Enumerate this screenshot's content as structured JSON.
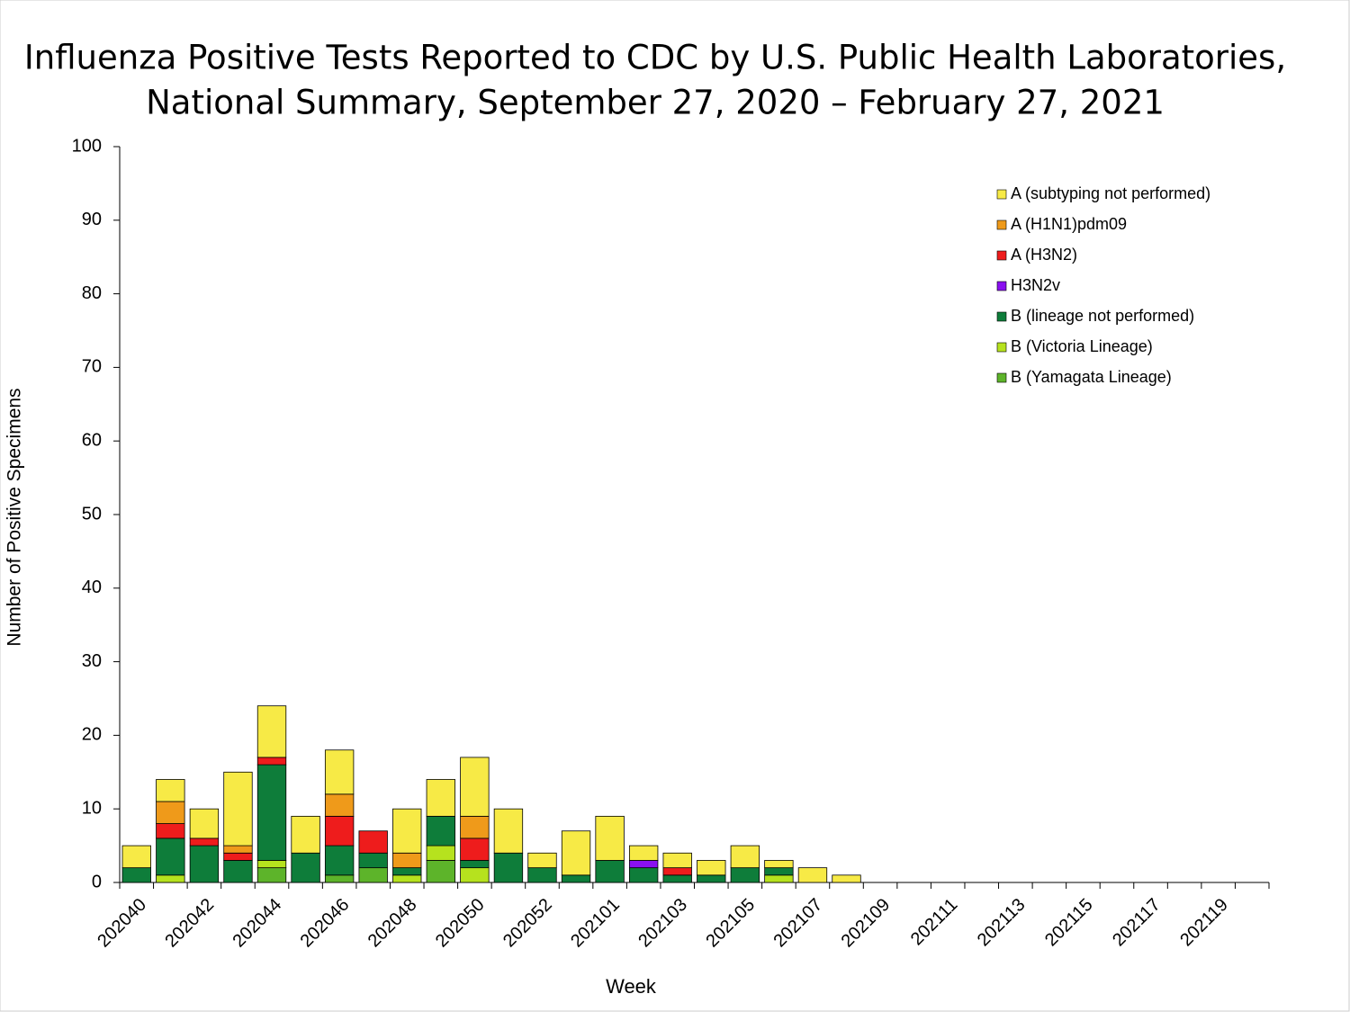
{
  "chart_data": {
    "type": "stacked-bar",
    "title": [
      "Influenza Positive Tests Reported to CDC by U.S. Public Health Laboratories,",
      "National Summary, September 27, 2020 – February 27, 2021"
    ],
    "x_label": "Week",
    "y_label": "Number of Positive Specimens",
    "categories": [
      "202040",
      null,
      "202042",
      null,
      "202044",
      null,
      "202046",
      null,
      "202048",
      null,
      "202050",
      null,
      "202052",
      null,
      "202101",
      null,
      "202103",
      null,
      "202105",
      null,
      "202107",
      null,
      "202109",
      null,
      "202111",
      null,
      "202113",
      null,
      "202115",
      null,
      "202117",
      null,
      "202119",
      null
    ],
    "series": [
      {
        "name": "A (subtyping not performed)",
        "color": "#f7ea46",
        "values": [
          3,
          3,
          4,
          10,
          7,
          5,
          6,
          0,
          6,
          5,
          8,
          6,
          2,
          6,
          6,
          2,
          2,
          2,
          3,
          1,
          2,
          1,
          0,
          0,
          0,
          0,
          0,
          0,
          0,
          0,
          0,
          0,
          0,
          0
        ]
      },
      {
        "name": "A (H1N1)pdm09",
        "color": "#ef9a1a",
        "values": [
          0,
          3,
          0,
          1,
          0,
          0,
          3,
          0,
          2,
          0,
          3,
          0,
          0,
          0,
          0,
          0,
          0,
          0,
          0,
          0,
          0,
          0,
          0,
          0,
          0,
          0,
          0,
          0,
          0,
          0,
          0,
          0,
          0,
          0
        ]
      },
      {
        "name": "A (H3N2)",
        "color": "#ee1c1c",
        "values": [
          0,
          2,
          1,
          1,
          1,
          0,
          4,
          3,
          0,
          0,
          3,
          0,
          0,
          0,
          0,
          0,
          1,
          0,
          0,
          0,
          0,
          0,
          0,
          0,
          0,
          0,
          0,
          0,
          0,
          0,
          0,
          0,
          0,
          0
        ]
      },
      {
        "name": "H3N2v",
        "color": "#8a10f0",
        "values": [
          0,
          0,
          0,
          0,
          0,
          0,
          0,
          0,
          0,
          0,
          0,
          0,
          0,
          0,
          0,
          1,
          0,
          0,
          0,
          0,
          0,
          0,
          0,
          0,
          0,
          0,
          0,
          0,
          0,
          0,
          0,
          0,
          0,
          0
        ]
      },
      {
        "name": "B (lineage not performed)",
        "color": "#0e7d3a",
        "values": [
          2,
          5,
          5,
          3,
          13,
          4,
          4,
          2,
          1,
          4,
          1,
          4,
          2,
          1,
          3,
          2,
          1,
          1,
          2,
          1,
          0,
          0,
          0,
          0,
          0,
          0,
          0,
          0,
          0,
          0,
          0,
          0,
          0,
          0
        ]
      },
      {
        "name": "B (Victoria Lineage)",
        "color": "#b6e21e",
        "values": [
          0,
          1,
          0,
          0,
          1,
          0,
          0,
          0,
          1,
          2,
          2,
          0,
          0,
          0,
          0,
          0,
          0,
          0,
          0,
          1,
          0,
          0,
          0,
          0,
          0,
          0,
          0,
          0,
          0,
          0,
          0,
          0,
          0,
          0
        ]
      },
      {
        "name": "B (Yamagata Lineage)",
        "color": "#5db42a",
        "values": [
          0,
          0,
          0,
          0,
          2,
          0,
          1,
          2,
          0,
          3,
          0,
          0,
          0,
          0,
          0,
          0,
          0,
          0,
          0,
          0,
          0,
          0,
          0,
          0,
          0,
          0,
          0,
          0,
          0,
          0,
          0,
          0,
          0,
          0
        ]
      }
    ],
    "ylim": [
      0,
      100
    ],
    "yticks": [
      0,
      10,
      20,
      30,
      40,
      50,
      60,
      70,
      80,
      90,
      100
    ],
    "grid": false,
    "legend": "top-right"
  }
}
